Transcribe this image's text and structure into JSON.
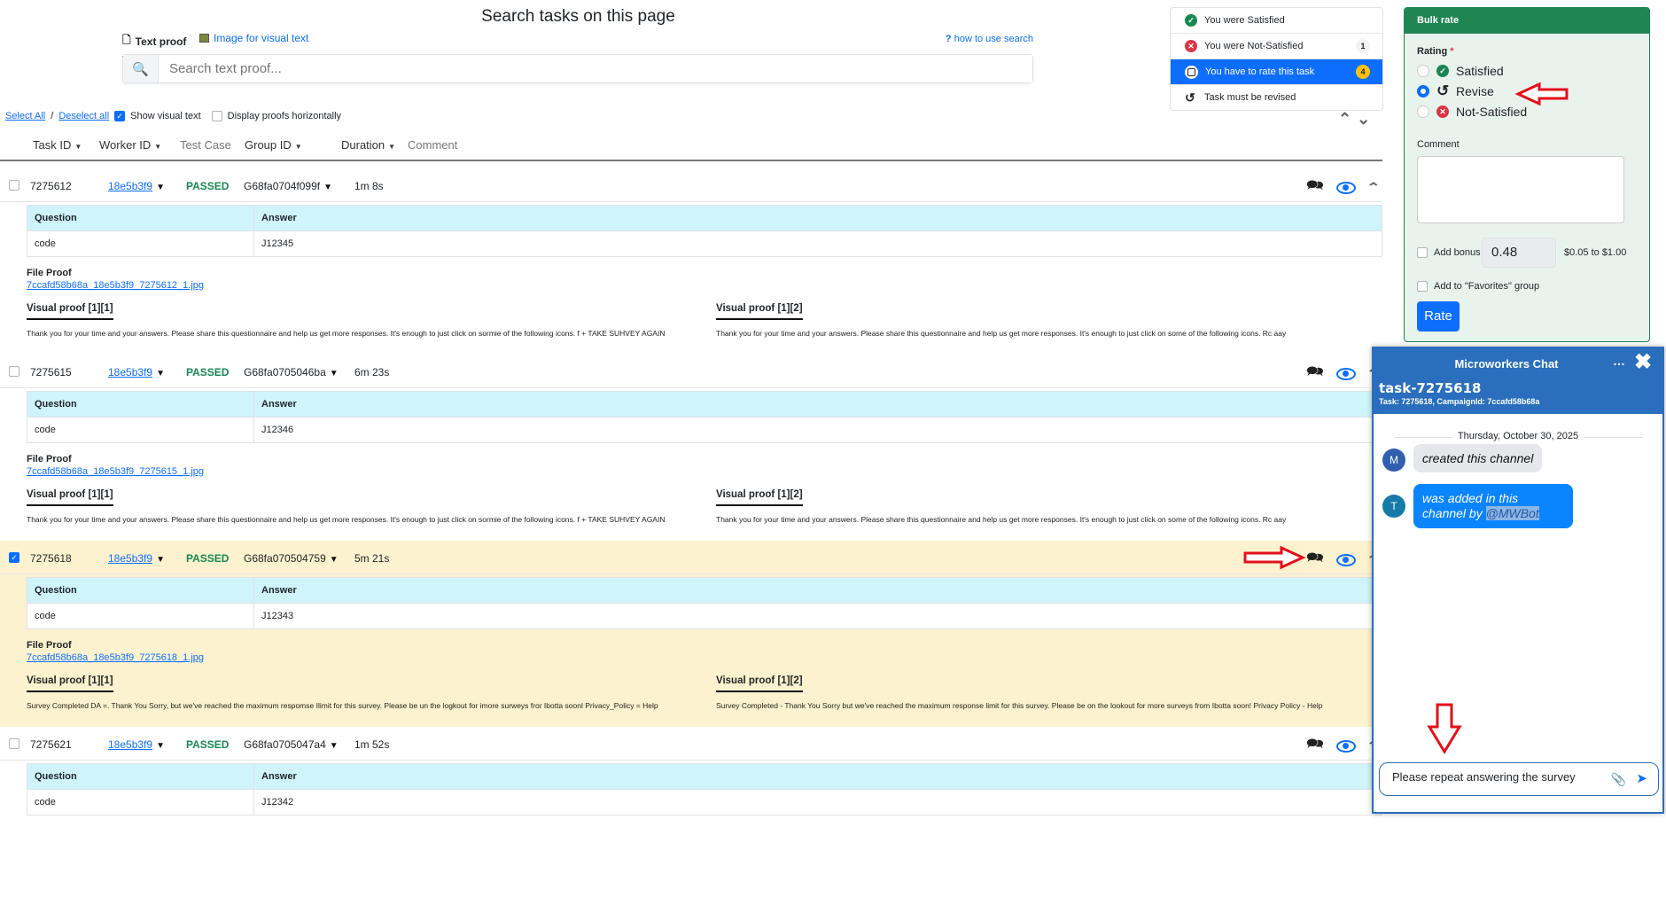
{
  "search": {
    "title": "Search tasks on this page",
    "tab_text": "Text proof",
    "tab_image": "Image for visual text",
    "help": "how to use search",
    "placeholder": "Search text proof..."
  },
  "controls": {
    "select_all": "Select All",
    "separator": "/",
    "deselect_all": "Deselect all",
    "show_visual_text": "Show visual text",
    "show_visual_text_checked": true,
    "display_horizontally": "Display proofs horizontally",
    "display_horizontally_checked": false
  },
  "columns": [
    "Task ID",
    "Worker ID",
    "Test Case",
    "Group ID",
    "Duration",
    "Comment"
  ],
  "table_headers": {
    "question": "Question",
    "answer": "Answer"
  },
  "labels": {
    "file_proof": "File Proof",
    "visual_1": "Visual proof [1][1]",
    "visual_2": "Visual proof [1][2]"
  },
  "tasks": [
    {
      "task_id": "7275612",
      "worker_id": "18e5b3f9",
      "status": "PASSED",
      "group_id": "G68fa0704f099f",
      "duration": "1m 8s",
      "checked": false,
      "question": "code",
      "answer": "J12345",
      "file": "7ccafd58b68a_18e5b3f9_7275612_1.jpg",
      "proof1": "Thank you for your time and your answers. Please share this questionnaire and help us get more responses. It's enough to just click on sormie of the following icons. f + TAKE SUHVEY AGAIN",
      "proof2": "Thank you for your time and your answers. Please share this questionnaire and help us get more responses. It's enough to just click on some of the following icons. Rc aay"
    },
    {
      "task_id": "7275615",
      "worker_id": "18e5b3f9",
      "status": "PASSED",
      "group_id": "G68fa0705046ba",
      "duration": "6m 23s",
      "checked": false,
      "question": "code",
      "answer": "J12346",
      "file": "7ccafd58b68a_18e5b3f9_7275615_1.jpg",
      "proof1": "Thank you for your time and your answers. Please share this questionnaire and help us get more responses. It's enough to just click on sormie of the following icons. f + TAKE SUHVEY AGAIN",
      "proof2": "Thank you for your time and your answers. Please share this questionnaire and help us get more responses. It's enough to just click on some of the following icons. Rc aay"
    },
    {
      "task_id": "7275618",
      "worker_id": "18e5b3f9",
      "status": "PASSED",
      "group_id": "G68fa070504759",
      "duration": "5m 21s",
      "checked": true,
      "question": "code",
      "answer": "J12343",
      "file": "7ccafd58b68a_18e5b3f9_7275618_1.jpg",
      "proof1": "Survey Completed DA =. Thank You Sorry, but we've reached the maximum respomse Ilimit for this survey. Please be un the logkout for imore surweys fror Ibotta soonl Privacy_Policy = Help",
      "proof2": "Survey Completed - Thank You Sorry but we've reached the maximum response limit for this survey. Please be on the lookout for more surveys from Ibotta soon! Privacy Policy - Help"
    },
    {
      "task_id": "7275621",
      "worker_id": "18e5b3f9",
      "status": "PASSED",
      "group_id": "G68fa0705047a4",
      "duration": "1m 52s",
      "checked": false,
      "question": "code",
      "answer": "J12342",
      "file": "",
      "proof1": "",
      "proof2": ""
    }
  ],
  "status_filter": [
    {
      "label": "You were Satisfied",
      "icon": "check-circle-icon",
      "color": "#198754",
      "count": ""
    },
    {
      "label": "You were Not-Satisfied",
      "icon": "x-circle-icon",
      "color": "#dc3545",
      "count": "1"
    },
    {
      "label": "You have to rate this task",
      "icon": "square-icon",
      "color": "#0d6efd",
      "count": "4",
      "active": true
    },
    {
      "label": "Task must be revised",
      "icon": "undo-icon",
      "color": "#212529",
      "count": ""
    }
  ],
  "bulk_rate": {
    "title": "Bulk rate",
    "rating_label": "Rating",
    "required": "*",
    "options": [
      "Satisfied",
      "Revise",
      "Not-Satisfied"
    ],
    "selected": "Revise",
    "comment_label": "Comment",
    "comment_value": "",
    "add_bonus": "Add bonus",
    "bonus_value": "0.48",
    "bonus_range": "$0.05 to $1.00",
    "favorites": "Add to \"Favorites\" group",
    "rate_button": "Rate"
  },
  "chat": {
    "title": "Microworkers Chat",
    "channel": "task-7275618",
    "subtitle": "Task: 7275618, CampaignId: 7ccafd58b68a",
    "date": "Thursday, October 30, 2025",
    "messages": [
      {
        "avatar": "M",
        "text": "created this channel"
      },
      {
        "avatar": "T",
        "text": "was added in this channel by",
        "mention": "@MWBot"
      }
    ],
    "input_value": "Please repeat answering the survey"
  },
  "colors": {
    "primary": "#0d6efd",
    "success": "#198754",
    "bulk_header": "#1e8553",
    "chat_header": "#2a6ebd",
    "selected_row": "#fdf2cf",
    "annotation_arrow": "#e3101a"
  }
}
